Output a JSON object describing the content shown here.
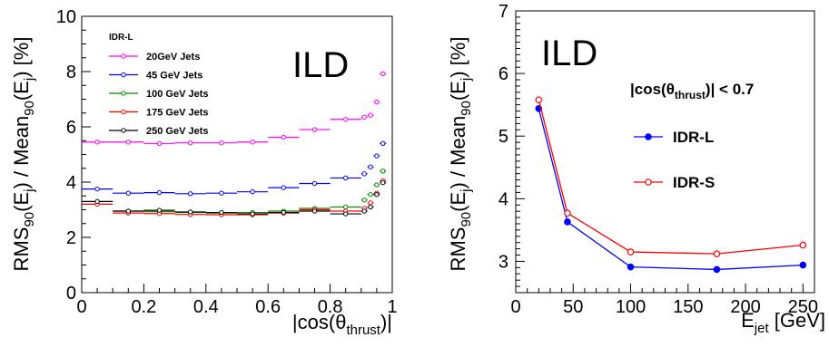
{
  "chart_data": [
    {
      "type": "scatter",
      "watermark": "ILD",
      "legend": {
        "title": "IDR-L",
        "position": "top-left",
        "entries": [
          "20GeV Jets",
          "45 GeV Jets",
          "100 GeV Jets",
          "175 GeV Jets",
          "250 GeV Jets"
        ]
      },
      "xlabel": "|cos(θthrust)|",
      "ylabel": "RMS90(Ej) / Mean90(Ej) [%]",
      "xlim": [
        0,
        1
      ],
      "ylim": [
        0,
        10
      ],
      "xticks": [
        "0",
        "0.2",
        "0.4",
        "0.6",
        "0.8",
        "1"
      ],
      "yticks": [
        "0",
        "2",
        "4",
        "6",
        "8",
        "10"
      ],
      "series": [
        {
          "name": "20GeV Jets",
          "color": "#ff00ff",
          "points": [
            {
              "x0": 0.0,
              "x1": 0.1,
              "y": 5.45
            },
            {
              "x0": 0.1,
              "x1": 0.2,
              "y": 5.45
            },
            {
              "x0": 0.2,
              "x1": 0.3,
              "y": 5.4
            },
            {
              "x0": 0.3,
              "x1": 0.4,
              "y": 5.42
            },
            {
              "x0": 0.4,
              "x1": 0.5,
              "y": 5.42
            },
            {
              "x0": 0.5,
              "x1": 0.6,
              "y": 5.45
            },
            {
              "x0": 0.6,
              "x1": 0.7,
              "y": 5.62
            },
            {
              "x0": 0.7,
              "x1": 0.8,
              "y": 5.9
            },
            {
              "x0": 0.8,
              "x1": 0.9,
              "y": 6.27
            },
            {
              "x0": 0.9,
              "x1": 0.92,
              "y": 6.35
            },
            {
              "x0": 0.92,
              "x1": 0.94,
              "y": 6.42
            },
            {
              "x0": 0.94,
              "x1": 0.96,
              "y": 6.9
            },
            {
              "x0": 0.96,
              "x1": 0.98,
              "y": 7.92
            }
          ]
        },
        {
          "name": "45 GeV Jets",
          "color": "#0000ff",
          "points": [
            {
              "x0": 0.0,
              "x1": 0.1,
              "y": 3.75
            },
            {
              "x0": 0.1,
              "x1": 0.2,
              "y": 3.6
            },
            {
              "x0": 0.2,
              "x1": 0.3,
              "y": 3.62
            },
            {
              "x0": 0.3,
              "x1": 0.4,
              "y": 3.58
            },
            {
              "x0": 0.4,
              "x1": 0.5,
              "y": 3.6
            },
            {
              "x0": 0.5,
              "x1": 0.6,
              "y": 3.65
            },
            {
              "x0": 0.6,
              "x1": 0.7,
              "y": 3.8
            },
            {
              "x0": 0.7,
              "x1": 0.8,
              "y": 3.95
            },
            {
              "x0": 0.8,
              "x1": 0.9,
              "y": 4.15
            },
            {
              "x0": 0.9,
              "x1": 0.92,
              "y": 4.3
            },
            {
              "x0": 0.92,
              "x1": 0.94,
              "y": 4.55
            },
            {
              "x0": 0.94,
              "x1": 0.96,
              "y": 4.95
            },
            {
              "x0": 0.96,
              "x1": 0.98,
              "y": 5.4
            }
          ]
        },
        {
          "name": "100 GeV Jets",
          "color": "#008800",
          "points": [
            {
              "x0": 0.1,
              "x1": 0.2,
              "y": 2.95
            },
            {
              "x0": 0.2,
              "x1": 0.3,
              "y": 2.93
            },
            {
              "x0": 0.3,
              "x1": 0.4,
              "y": 2.9
            },
            {
              "x0": 0.4,
              "x1": 0.5,
              "y": 2.88
            },
            {
              "x0": 0.5,
              "x1": 0.6,
              "y": 2.9
            },
            {
              "x0": 0.6,
              "x1": 0.7,
              "y": 2.95
            },
            {
              "x0": 0.7,
              "x1": 0.8,
              "y": 3.05
            },
            {
              "x0": 0.8,
              "x1": 0.9,
              "y": 3.1
            },
            {
              "x0": 0.9,
              "x1": 0.92,
              "y": 3.35
            },
            {
              "x0": 0.92,
              "x1": 0.94,
              "y": 3.55
            },
            {
              "x0": 0.94,
              "x1": 0.96,
              "y": 3.9
            },
            {
              "x0": 0.96,
              "x1": 0.98,
              "y": 4.4
            }
          ]
        },
        {
          "name": "175 GeV Jets",
          "color": "#ff0000",
          "points": [
            {
              "x0": 0.0,
              "x1": 0.1,
              "y": 3.2
            },
            {
              "x0": 0.1,
              "x1": 0.2,
              "y": 2.88
            },
            {
              "x0": 0.2,
              "x1": 0.3,
              "y": 2.86
            },
            {
              "x0": 0.3,
              "x1": 0.4,
              "y": 2.83
            },
            {
              "x0": 0.4,
              "x1": 0.5,
              "y": 2.82
            },
            {
              "x0": 0.5,
              "x1": 0.6,
              "y": 2.82
            },
            {
              "x0": 0.6,
              "x1": 0.7,
              "y": 2.88
            },
            {
              "x0": 0.7,
              "x1": 0.8,
              "y": 3.0
            },
            {
              "x0": 0.8,
              "x1": 0.9,
              "y": 2.95
            },
            {
              "x0": 0.9,
              "x1": 0.92,
              "y": 3.05
            },
            {
              "x0": 0.92,
              "x1": 0.94,
              "y": 3.25
            },
            {
              "x0": 0.94,
              "x1": 0.96,
              "y": 3.6
            },
            {
              "x0": 0.96,
              "x1": 0.98,
              "y": 4.05
            }
          ]
        },
        {
          "name": "250 GeV Jets",
          "color": "#000000",
          "points": [
            {
              "x0": 0.0,
              "x1": 0.1,
              "y": 3.3
            },
            {
              "x0": 0.1,
              "x1": 0.2,
              "y": 2.95
            },
            {
              "x0": 0.2,
              "x1": 0.3,
              "y": 2.98
            },
            {
              "x0": 0.3,
              "x1": 0.4,
              "y": 2.92
            },
            {
              "x0": 0.4,
              "x1": 0.5,
              "y": 2.9
            },
            {
              "x0": 0.5,
              "x1": 0.6,
              "y": 2.85
            },
            {
              "x0": 0.6,
              "x1": 0.7,
              "y": 2.9
            },
            {
              "x0": 0.7,
              "x1": 0.8,
              "y": 2.95
            },
            {
              "x0": 0.8,
              "x1": 0.9,
              "y": 2.85
            },
            {
              "x0": 0.9,
              "x1": 0.92,
              "y": 2.95
            },
            {
              "x0": 0.92,
              "x1": 0.94,
              "y": 3.1
            },
            {
              "x0": 0.94,
              "x1": 0.96,
              "y": 3.55
            },
            {
              "x0": 0.96,
              "x1": 0.98,
              "y": 3.98
            }
          ]
        }
      ]
    },
    {
      "type": "line",
      "watermark": "ILD",
      "annotation": "|cos(θthrust)| < 0.7",
      "legend": {
        "position": "middle-right",
        "entries": [
          "IDR-L",
          "IDR-S"
        ]
      },
      "xlabel": "Ejet [GeV]",
      "ylabel": "RMS90(Ej) / Mean90(Ej) [%]",
      "xlim": [
        0,
        260
      ],
      "ylim": [
        2.5,
        7
      ],
      "xticks": [
        "0",
        "50",
        "100",
        "150",
        "200",
        "250"
      ],
      "yticks": [
        "3",
        "4",
        "5",
        "6",
        "7"
      ],
      "x": [
        20,
        45,
        100,
        175,
        250
      ],
      "series": [
        {
          "name": "IDR-L",
          "color": "#0000ff",
          "marker": "filled-circle",
          "values": [
            5.44,
            3.63,
            2.91,
            2.87,
            2.94
          ]
        },
        {
          "name": "IDR-S",
          "color": "#ff0000",
          "marker": "open-circle",
          "values": [
            5.58,
            3.77,
            3.15,
            3.12,
            3.26
          ]
        }
      ]
    }
  ]
}
